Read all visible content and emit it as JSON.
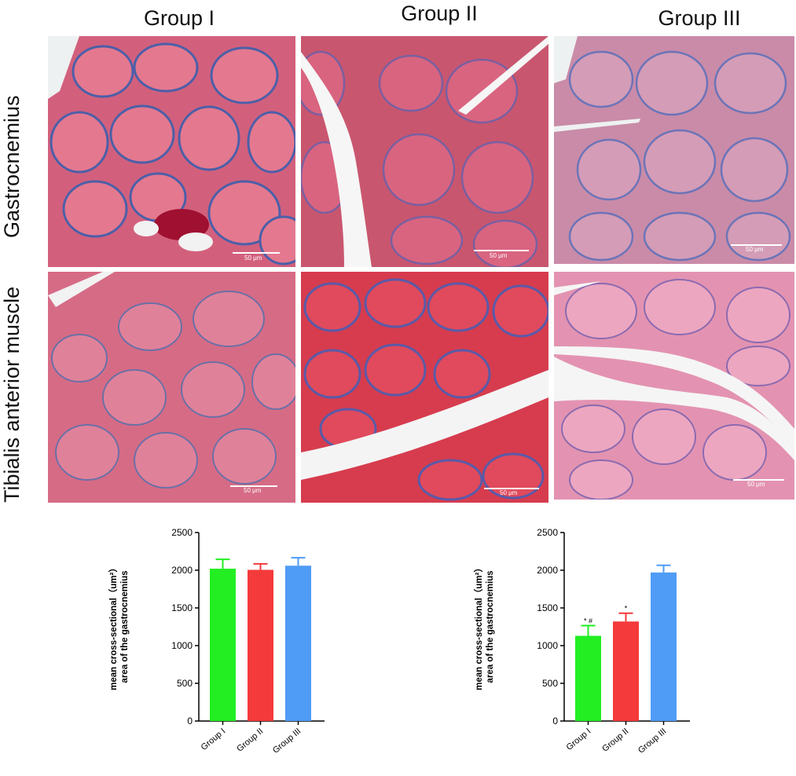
{
  "columns": [
    "Group I",
    "Group II",
    "Group III"
  ],
  "rows": [
    "Gastrocnemius",
    "Tibialis anterior muscle"
  ],
  "scale_bar_label": "50 μm",
  "panels": [
    {
      "row": 0,
      "col": 0,
      "tissue": "pink"
    },
    {
      "row": 0,
      "col": 1,
      "tissue": "pink"
    },
    {
      "row": 0,
      "col": 2,
      "tissue": "pale"
    },
    {
      "row": 1,
      "col": 0,
      "tissue": "pink"
    },
    {
      "row": 1,
      "col": 1,
      "tissue": "red"
    },
    {
      "row": 1,
      "col": 2,
      "tissue": "light"
    }
  ],
  "chart_data": [
    {
      "type": "bar",
      "categories": [
        "Group I",
        "Group II",
        "Group III"
      ],
      "values": [
        2020,
        2005,
        2060
      ],
      "errors": [
        125,
        80,
        105
      ],
      "colors": [
        "#22ee22",
        "#f43a3a",
        "#4f9cf6"
      ],
      "ylabel_line1": "mean cross-sectional（um²）",
      "ylabel_line2": "area of the gastrocnemius",
      "ylim": [
        0,
        2500
      ],
      "yticks": [
        "0",
        "500",
        "1000",
        "1500",
        "2000",
        "2500"
      ],
      "annotations": [
        "",
        "",
        ""
      ]
    },
    {
      "type": "bar",
      "categories": [
        "Group I",
        "Group II",
        "Group III"
      ],
      "values": [
        1130,
        1320,
        1970
      ],
      "errors": [
        135,
        110,
        95
      ],
      "colors": [
        "#22ee22",
        "#f43a3a",
        "#4f9cf6"
      ],
      "ylabel_line1": "mean cross-sectional（um²）",
      "ylabel_line2": "area of the gastrocnemius",
      "ylim": [
        0,
        2500
      ],
      "yticks": [
        "0",
        "500",
        "1000",
        "1500",
        "2000",
        "2500"
      ],
      "annotations": [
        "* #",
        "*",
        ""
      ]
    }
  ]
}
